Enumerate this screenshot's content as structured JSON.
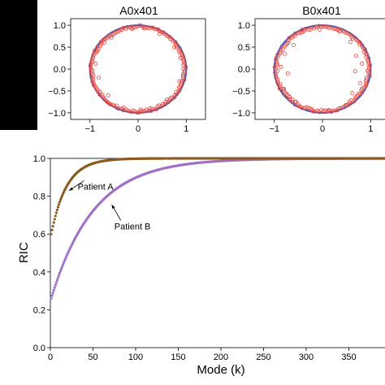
{
  "colors": {
    "background": "#ffffff",
    "left_bar": "#000000",
    "unit_circle": "#4a5ab8",
    "eigen_markers": "#e8453c",
    "patient_a_series": "#8a5a1e",
    "patient_b_series": "#a070c8"
  },
  "chart_data": [
    {
      "type": "scatter",
      "title": "A0x401",
      "xlim": [
        -1.4,
        1.4
      ],
      "ylim": [
        -1.15,
        1.15
      ],
      "xticks": [
        "−1",
        "0",
        "1"
      ],
      "xtick_values": [
        -1,
        0,
        1
      ],
      "yticks": [
        "1.0",
        "0.5",
        "0.0",
        "−0.5",
        "−1.0"
      ],
      "ytick_values": [
        1.0,
        0.5,
        0.0,
        -0.5,
        -1.0
      ],
      "grid": false,
      "legend": "none",
      "unit_circle": true,
      "ring_points": 150,
      "ring_radius_range": [
        0.94,
        0.995
      ],
      "interior_points": [
        [
          -0.88,
          0.12
        ],
        [
          -0.82,
          -0.2
        ],
        [
          0.86,
          -0.28
        ],
        [
          -0.55,
          0.72
        ],
        [
          0.45,
          0.8
        ],
        [
          -0.3,
          -0.88
        ],
        [
          0.25,
          -0.9
        ],
        [
          0.75,
          0.5
        ],
        [
          -0.9,
          0.42
        ],
        [
          0.88,
          0.25
        ],
        [
          -0.62,
          -0.6
        ],
        [
          0.6,
          -0.7
        ],
        [
          -0.12,
          0.92
        ],
        [
          0.12,
          0.93
        ],
        [
          0.05,
          -0.93
        ],
        [
          -0.7,
          0.6
        ]
      ]
    },
    {
      "type": "scatter",
      "title": "B0x401",
      "xlim": [
        -1.4,
        1.4
      ],
      "ylim": [
        -1.15,
        1.15
      ],
      "xticks": [
        "−1",
        "0",
        "1"
      ],
      "xtick_values": [
        -1,
        0,
        1
      ],
      "yticks": [
        "1.0",
        "0.5",
        "0.0",
        "−0.5",
        "−1.0"
      ],
      "ytick_values": [
        1.0,
        0.5,
        0.0,
        -0.5,
        -1.0
      ],
      "grid": false,
      "legend": "none",
      "unit_circle": true,
      "ring_points": 150,
      "ring_radius_range": [
        0.93,
        0.995
      ],
      "interior_points": [
        [
          -0.78,
          0.35
        ],
        [
          -0.72,
          -0.1
        ],
        [
          -0.8,
          -0.45
        ],
        [
          -0.55,
          -0.75
        ],
        [
          0.7,
          0.3
        ],
        [
          0.68,
          -0.05
        ],
        [
          0.62,
          -0.55
        ],
        [
          -0.4,
          0.85
        ],
        [
          0.35,
          0.86
        ],
        [
          0.5,
          -0.82
        ],
        [
          -0.22,
          -0.92
        ],
        [
          0.15,
          -0.95
        ],
        [
          -0.06,
          0.9
        ],
        [
          0.58,
          0.62
        ],
        [
          0.78,
          -0.32
        ],
        [
          -0.6,
          0.55
        ],
        [
          -0.86,
          0.05
        ],
        [
          0.82,
          0.12
        ]
      ]
    },
    {
      "type": "scatter",
      "xlabel": "Mode (k)",
      "ylabel": "RIC",
      "xlim": [
        0,
        400
      ],
      "ylim": [
        0,
        1.0
      ],
      "xticks": [
        "0",
        "50",
        "100",
        "150",
        "200",
        "250",
        "300",
        "350"
      ],
      "xtick_values": [
        0,
        50,
        100,
        150,
        200,
        250,
        300,
        350
      ],
      "yticks": [
        "0.0",
        "0.2",
        "0.4",
        "0.6",
        "0.8",
        "1.0"
      ],
      "ytick_values": [
        0.0,
        0.2,
        0.4,
        0.6,
        0.8,
        1.0
      ],
      "grid": false,
      "legend": "none",
      "n_modes": 400,
      "series": [
        {
          "name": "Patient A",
          "start": 0.6,
          "rate": 0.055
        },
        {
          "name": "Patient B",
          "start": 0.26,
          "rate": 0.02
        }
      ],
      "annotations": [
        {
          "text": "Patient A",
          "arrow_to": [
            22,
            0.83
          ],
          "text_at": [
            32,
            0.835
          ]
        },
        {
          "text": "Patient B",
          "arrow_to": [
            72,
            0.755
          ],
          "text_at": [
            75,
            0.625
          ]
        }
      ]
    }
  ]
}
